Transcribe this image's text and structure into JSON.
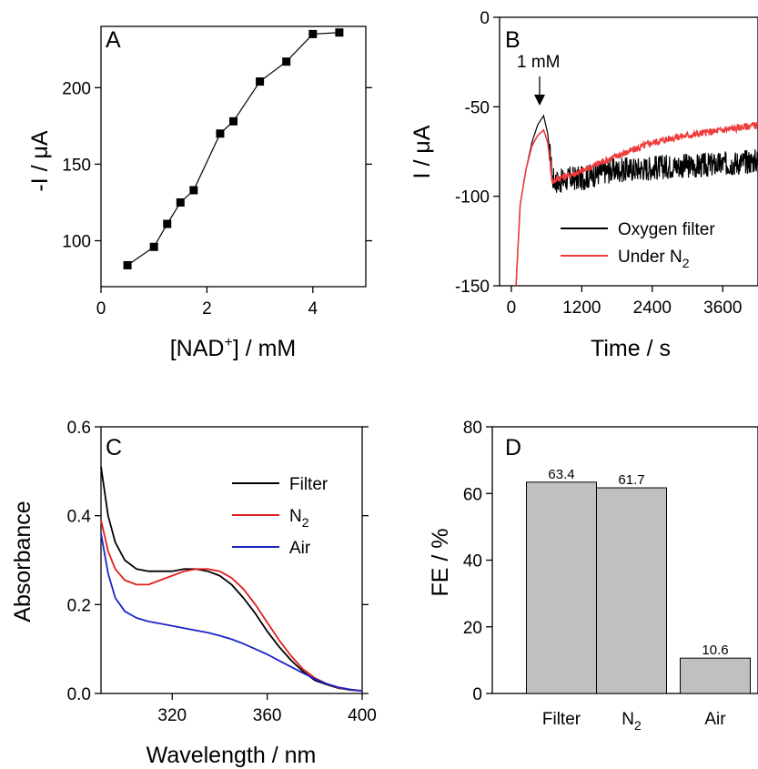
{
  "chart_data": [
    {
      "panel": "A",
      "type": "line",
      "xlabel_pre": "[NAD",
      "xlabel_sup": "+",
      "xlabel_post": "] / mM",
      "ylabel": "-I / μA",
      "xlim": [
        0,
        5
      ],
      "ylim": [
        70,
        240
      ],
      "xticks": [
        0,
        2,
        4
      ],
      "yticks": [
        100,
        150,
        200
      ],
      "series": [
        {
          "marker": "square",
          "color": "#000000",
          "x": [
            0.5,
            1.0,
            1.25,
            1.5,
            1.75,
            2.25,
            2.5,
            3.0,
            3.5,
            4.0,
            4.5
          ],
          "y": [
            84,
            96,
            111,
            125,
            133,
            170,
            178,
            204,
            217,
            235,
            236
          ]
        }
      ]
    },
    {
      "panel": "B",
      "type": "line",
      "xlabel": "Time / s",
      "ylabel": "I / μA",
      "xlim": [
        -200,
        4200
      ],
      "ylim": [
        -150,
        0
      ],
      "xticks": [
        0,
        1200,
        2400,
        3600
      ],
      "yticks": [
        -150,
        -100,
        -50,
        0
      ],
      "annotation": {
        "text": "1 mM",
        "x": 550,
        "y": -50
      },
      "legend_position": "bottom-right",
      "series": [
        {
          "name": "Oxygen filter",
          "color": "#000000",
          "x": [
            80,
            150,
            250,
            350,
            450,
            550,
            620,
            700,
            800,
            1000,
            1200,
            1600,
            2000,
            2400,
            2800,
            3200,
            3600,
            4200
          ],
          "y": [
            -150,
            -105,
            -85,
            -70,
            -60,
            -55,
            -65,
            -90,
            -92,
            -90,
            -90,
            -86,
            -85,
            -84,
            -83,
            -83,
            -82,
            -80
          ],
          "noise": 7
        },
        {
          "name": "Under N",
          "name_sub": "2",
          "color": "#ef3b3b",
          "x": [
            80,
            150,
            250,
            350,
            450,
            550,
            620,
            700,
            800,
            1000,
            1200,
            1600,
            2000,
            2400,
            2800,
            3200,
            3600,
            4200
          ],
          "y": [
            -150,
            -105,
            -85,
            -72,
            -66,
            -63,
            -70,
            -92,
            -90,
            -88,
            -86,
            -80,
            -75,
            -70,
            -67,
            -65,
            -63,
            -60
          ],
          "noise": 2
        }
      ]
    },
    {
      "panel": "C",
      "type": "line",
      "xlabel": "Wavelength / nm",
      "ylabel": "Absorbance",
      "xlim": [
        290,
        400
      ],
      "ylim": [
        0,
        0.6
      ],
      "xticks": [
        320,
        360,
        400
      ],
      "yticks": [
        0.0,
        0.2,
        0.4,
        0.6
      ],
      "legend_position": "top-right",
      "series": [
        {
          "name": "Filter",
          "color": "#000000",
          "x": [
            290,
            293,
            296,
            300,
            305,
            310,
            315,
            320,
            325,
            330,
            335,
            340,
            345,
            350,
            355,
            360,
            365,
            370,
            375,
            380,
            385,
            390,
            395,
            400
          ],
          "y": [
            0.51,
            0.4,
            0.34,
            0.3,
            0.28,
            0.275,
            0.275,
            0.275,
            0.28,
            0.28,
            0.275,
            0.265,
            0.245,
            0.215,
            0.18,
            0.14,
            0.105,
            0.075,
            0.05,
            0.03,
            0.02,
            0.012,
            0.008,
            0.006
          ]
        },
        {
          "name": "N",
          "name_sub": "2",
          "color": "#e01e1e",
          "x": [
            290,
            293,
            296,
            300,
            305,
            310,
            315,
            320,
            325,
            330,
            335,
            340,
            345,
            350,
            355,
            360,
            365,
            370,
            375,
            380,
            385,
            390,
            395,
            400
          ],
          "y": [
            0.39,
            0.32,
            0.28,
            0.255,
            0.245,
            0.245,
            0.255,
            0.265,
            0.275,
            0.28,
            0.28,
            0.275,
            0.26,
            0.235,
            0.2,
            0.16,
            0.12,
            0.085,
            0.055,
            0.035,
            0.022,
            0.013,
            0.009,
            0.006
          ]
        },
        {
          "name": "Air",
          "color": "#1b24c8",
          "x": [
            290,
            293,
            296,
            300,
            305,
            310,
            315,
            320,
            325,
            330,
            335,
            340,
            345,
            350,
            355,
            360,
            365,
            370,
            375,
            380,
            385,
            390,
            395,
            400
          ],
          "y": [
            0.36,
            0.27,
            0.215,
            0.185,
            0.17,
            0.162,
            0.157,
            0.152,
            0.147,
            0.142,
            0.137,
            0.13,
            0.122,
            0.112,
            0.1,
            0.088,
            0.074,
            0.06,
            0.046,
            0.033,
            0.022,
            0.014,
            0.009,
            0.006
          ]
        }
      ]
    },
    {
      "panel": "D",
      "type": "bar",
      "ylabel": "FE / %",
      "ylim": [
        0,
        80
      ],
      "yticks": [
        0,
        20,
        40,
        60,
        80
      ],
      "bar_color": "#c0c0c0",
      "categories": [
        {
          "label": "Filter",
          "sub": ""
        },
        {
          "label": "N",
          "sub": "2"
        },
        {
          "label": "Air",
          "sub": ""
        }
      ],
      "values": [
        63.4,
        61.7,
        10.6
      ],
      "value_labels": [
        "63.4",
        "61.7",
        "10.6"
      ]
    }
  ]
}
